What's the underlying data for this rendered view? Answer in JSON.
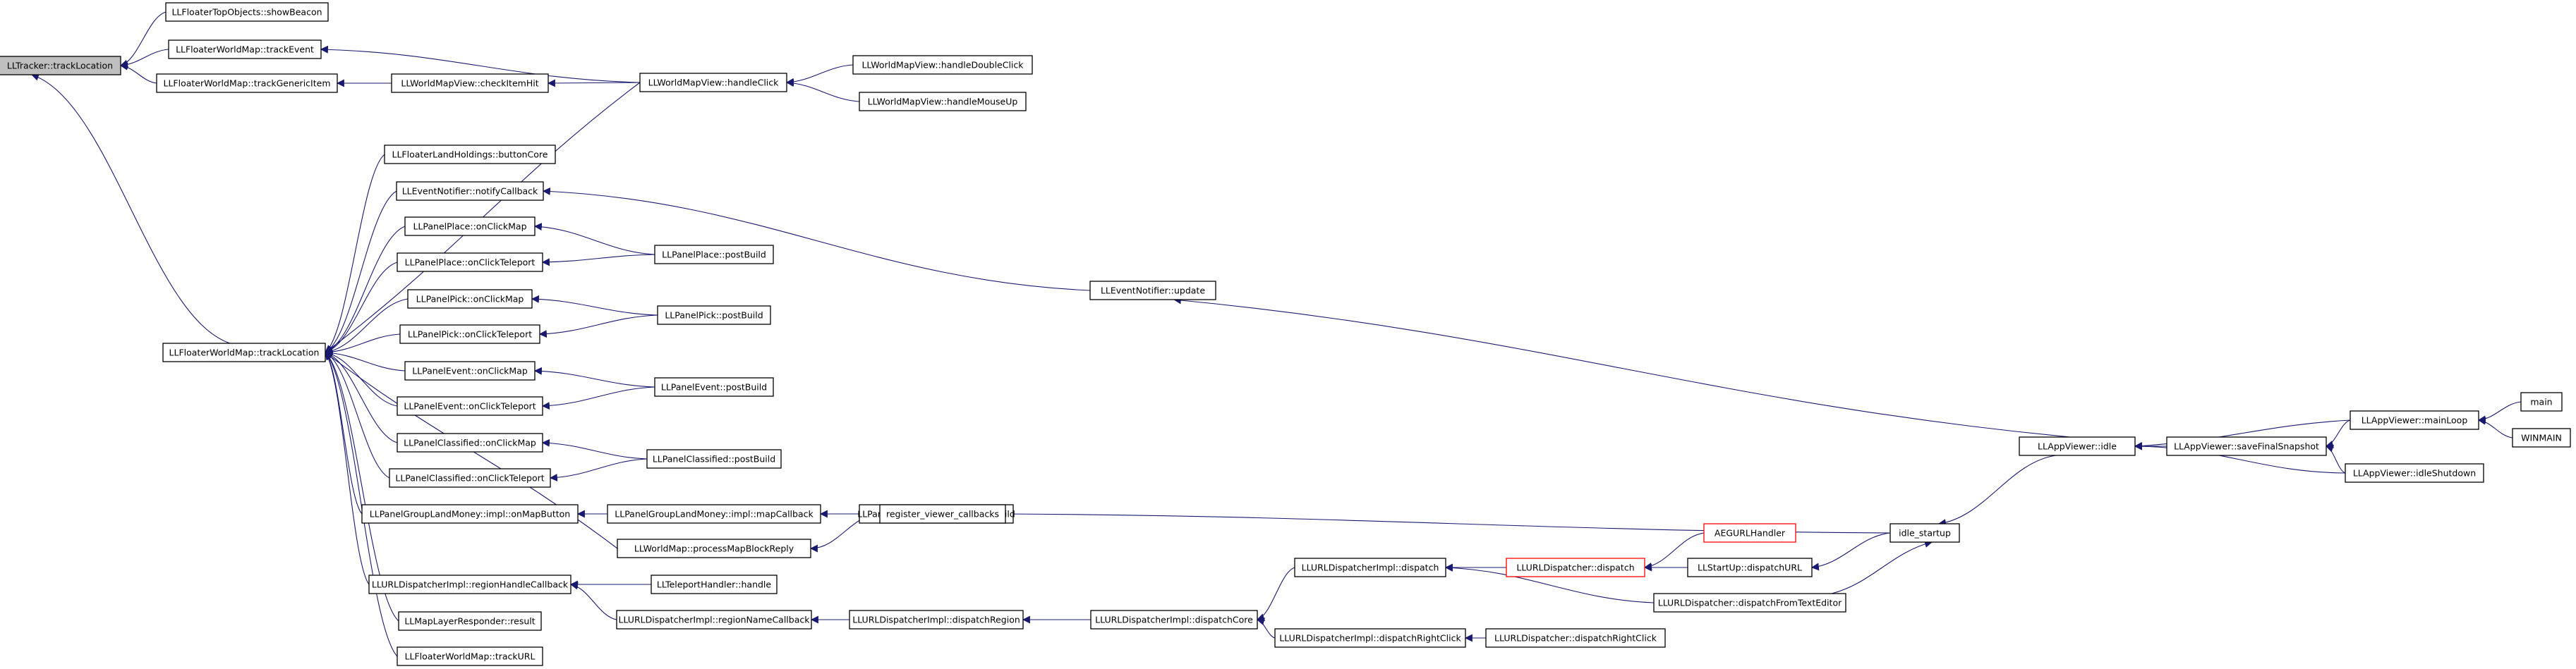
{
  "colors": {
    "edge": "#191970",
    "root_fill": "#bfbfbf",
    "red_border": "#ff0000"
  },
  "nodes": {
    "trackLocation": "LLTracker::trackLocation",
    "showBeacon": "LLFloaterTopObjects::showBeacon",
    "trackEvent": "LLFloaterWorldMap::trackEvent",
    "trackGenericItem": "LLFloaterWorldMap::trackGenericItem",
    "fwmTrackLocation": "LLFloaterWorldMap::trackLocation",
    "checkItemHit": "LLWorldMapView::checkItemHit",
    "handleClick": "LLWorldMapView::handleClick",
    "handleDoubleClick": "LLWorldMapView::handleDoubleClick",
    "handleMouseUp": "LLWorldMapView::handleMouseUp",
    "buttonCore": "LLFloaterLandHoldings::buttonCore",
    "notifyCallback": "LLEventNotifier::notifyCallback",
    "placeOnClickMap": "LLPanelPlace::onClickMap",
    "placeOnClickTeleport": "LLPanelPlace::onClickTeleport",
    "placePostBuild": "LLPanelPlace::postBuild",
    "pickOnClickMap": "LLPanelPick::onClickMap",
    "pickOnClickTeleport": "LLPanelPick::onClickTeleport",
    "pickPostBuild": "LLPanelPick::postBuild",
    "eventOnClickMap": "LLPanelEvent::onClickMap",
    "eventOnClickTeleport": "LLPanelEvent::onClickTeleport",
    "eventPostBuild": "LLPanelEvent::postBuild",
    "classifiedOnClickMap": "LLPanelClassified::onClickMap",
    "classifiedOnClickTeleport": "LLPanelClassified::onClickTeleport",
    "classifiedPostBuild": "LLPanelClassified::postBuild",
    "onMapButton": "LLPanelGroupLandMoney::impl::onMapButton",
    "mapCallback": "LLPanelGroupLandMoney::impl::mapCallback",
    "landMoneyPostBuild": "LLPanelGroupLandMoney::postBuild",
    "processMapBlockReply": "LLWorldMap::processMapBlockReply",
    "registerViewerCallbacks": "register_viewer_callbacks",
    "regionHandleCallback": "LLURLDispatcherImpl::regionHandleCallback",
    "teleportHandle": "LLTeleportHandler::handle",
    "regionNameCallback": "LLURLDispatcherImpl::regionNameCallback",
    "mapLayerResult": "LLMapLayerResponder::result",
    "trackURL": "LLFloaterWorldMap::trackURL",
    "eventNotifierUpdate": "LLEventNotifier::update",
    "appIdle": "LLAppViewer::idle",
    "saveFinalSnapshot": "LLAppViewer::saveFinalSnapshot",
    "mainLoop": "LLAppViewer::mainLoop",
    "main": "main",
    "winmain": "WINMAIN",
    "idleShutdown": "LLAppViewer::idleShutdown",
    "idleStartup": "idle_startup",
    "aegurlHandler": "AEGURLHandler",
    "dispatcherDispatch": "LLURLDispatcher::dispatch",
    "dispatchURL": "LLStartUp::dispatchURL",
    "implDispatch": "LLURLDispatcherImpl::dispatch",
    "dispatchFromTextEditor": "LLURLDispatcher::dispatchFromTextEditor",
    "dispatchCore": "LLURLDispatcherImpl::dispatchCore",
    "dispatchRegion": "LLURLDispatcherImpl::dispatchRegion",
    "implDispatchRightClick": "LLURLDispatcherImpl::dispatchRightClick",
    "dispatcherDispatchRightClick": "LLURLDispatcher::dispatchRightClick"
  }
}
